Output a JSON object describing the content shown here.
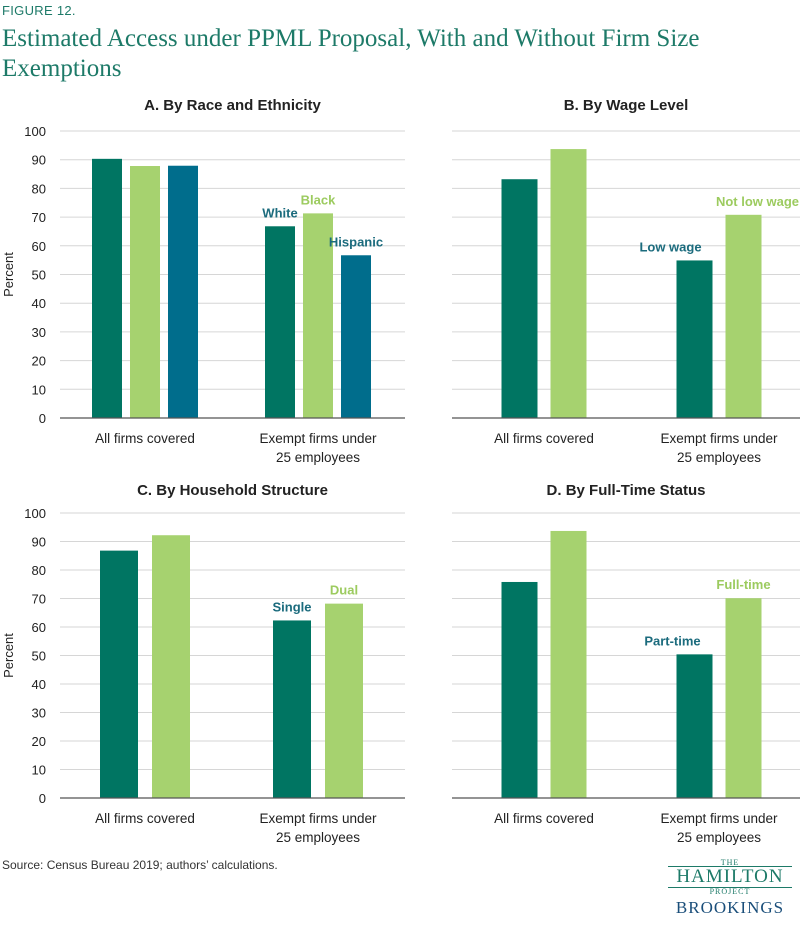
{
  "figure": {
    "label": "FIGURE 12.",
    "title": "Estimated Access under PPML Proposal, With and Without Firm Size Exemptions",
    "source": "Source:  Census Bureau 2019; authors’ calculations."
  },
  "logo": {
    "the": "THE",
    "hamilton": "HAMILTON",
    "project": "PROJECT",
    "brookings": "BROOKINGS"
  },
  "colors": {
    "dark_green": "#007562",
    "light_green": "#a6d26f",
    "teal": "#006d8c",
    "title_green": "#1d7a68"
  },
  "chart_data": [
    {
      "type": "bar",
      "title": "A. By Race and Ethnicity",
      "ylabel": "Percent",
      "ylim": [
        0,
        100
      ],
      "yticks": [
        0,
        10,
        20,
        30,
        40,
        50,
        60,
        70,
        80,
        90,
        100
      ],
      "categories": [
        "All firms covered",
        "Exempt firms under 25 employees"
      ],
      "series": [
        {
          "name": "White",
          "values": [
            90.3,
            66.8
          ],
          "color": "#007562",
          "label_color": "#1b6b7d"
        },
        {
          "name": "Black",
          "values": [
            87.8,
            71.3
          ],
          "color": "#a6d26f",
          "label_color": "#9ccb5f"
        },
        {
          "name": "Hispanic",
          "values": [
            87.9,
            56.7
          ],
          "color": "#006d8c",
          "label_color": "#1b6b7d"
        }
      ]
    },
    {
      "type": "bar",
      "title": "B. By Wage Level",
      "ylabel": "",
      "ylim": [
        0,
        100
      ],
      "yticks": [
        0,
        10,
        20,
        30,
        40,
        50,
        60,
        70,
        80,
        90,
        100
      ],
      "categories": [
        "All firms covered",
        "Exempt firms under 25 employees"
      ],
      "series": [
        {
          "name": "Low wage",
          "values": [
            83.2,
            54.9
          ],
          "color": "#007562",
          "label_color": "#1b6b7d"
        },
        {
          "name": "Not low wage",
          "values": [
            93.7,
            70.8
          ],
          "color": "#a6d26f",
          "label_color": "#9ccb5f"
        }
      ]
    },
    {
      "type": "bar",
      "title": "C. By Household Structure",
      "ylabel": "Percent",
      "ylim": [
        0,
        100
      ],
      "yticks": [
        0,
        10,
        20,
        30,
        40,
        50,
        60,
        70,
        80,
        90,
        100
      ],
      "categories": [
        "All firms covered",
        "Exempt firms under 25 employees"
      ],
      "series": [
        {
          "name": "Single",
          "values": [
            86.8,
            62.3
          ],
          "color": "#007562",
          "label_color": "#1b6b7d"
        },
        {
          "name": "Dual",
          "values": [
            92.2,
            68.2
          ],
          "color": "#a6d26f",
          "label_color": "#9ccb5f"
        }
      ]
    },
    {
      "type": "bar",
      "title": "D. By Full-Time Status",
      "ylabel": "",
      "ylim": [
        0,
        100
      ],
      "yticks": [
        0,
        10,
        20,
        30,
        40,
        50,
        60,
        70,
        80,
        90,
        100
      ],
      "categories": [
        "All firms covered",
        "Exempt firms under 25 employees"
      ],
      "series": [
        {
          "name": "Part-time",
          "values": [
            75.8,
            50.4
          ],
          "color": "#007562",
          "label_color": "#1b6b7d"
        },
        {
          "name": "Full-time",
          "values": [
            93.7,
            70.1
          ],
          "color": "#a6d26f",
          "label_color": "#9ccb5f"
        }
      ]
    }
  ]
}
